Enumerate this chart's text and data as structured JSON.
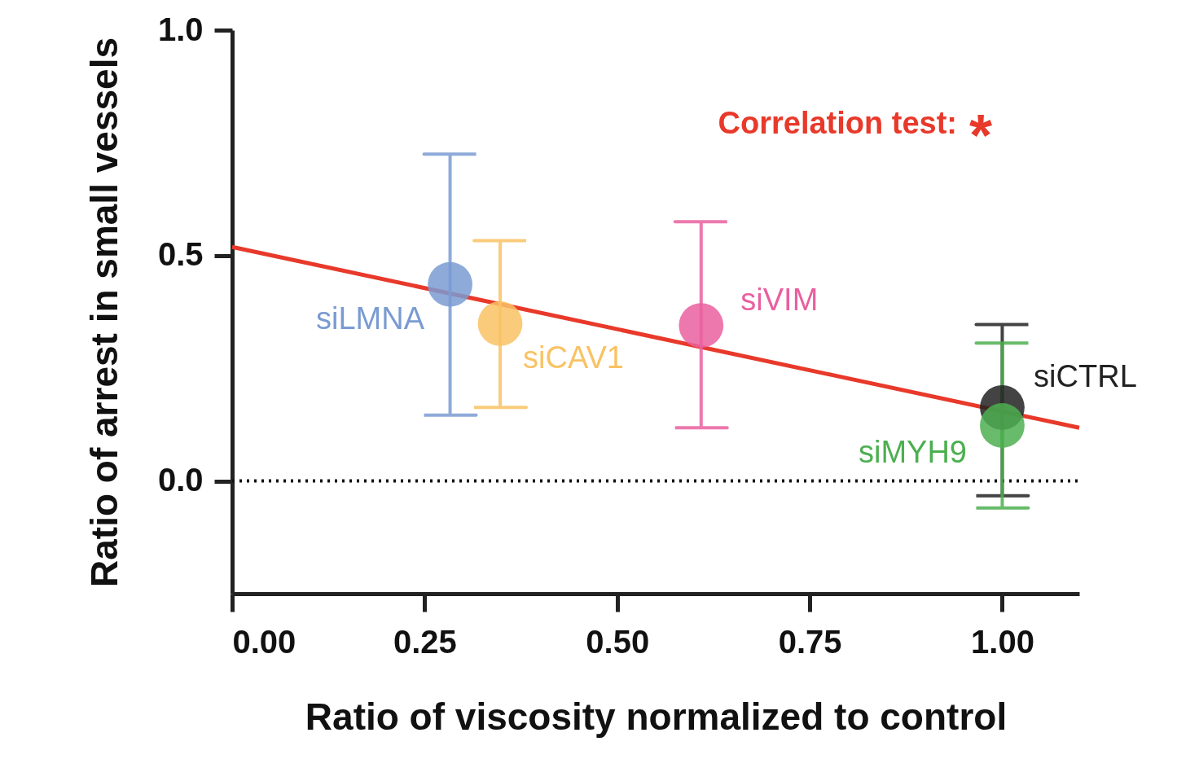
{
  "chart_data": {
    "type": "scatter",
    "xlabel": "Ratio of viscosity normalized to control",
    "ylabel": "Ratio of arrest in small vessels",
    "xlim": [
      0,
      1.1
    ],
    "ylim": [
      -0.25,
      1.0
    ],
    "xticks": [
      {
        "value": 0,
        "label": "0.00"
      },
      {
        "value": 0.25,
        "label": "0.25"
      },
      {
        "value": 0.5,
        "label": "0.50"
      },
      {
        "value": 0.75,
        "label": "0.75"
      },
      {
        "value": 1,
        "label": "1.00"
      }
    ],
    "yticks": [
      {
        "value": 0,
        "label": "0.0"
      },
      {
        "value": 0.5,
        "label": "0.5"
      },
      {
        "value": 1,
        "label": "1.0"
      }
    ],
    "marker": "circle",
    "series": [
      {
        "name": "siLMNA",
        "color": "#7a9bd2",
        "x": [
          0.283
        ],
        "values": [
          0.436
        ],
        "errors": [
          [
            0.146,
            0.725
          ]
        ]
      },
      {
        "name": "siCAV1",
        "color": "#f9c264",
        "x": [
          0.348
        ],
        "values": [
          0.349
        ],
        "errors": [
          [
            0.163,
            0.533
          ]
        ]
      },
      {
        "name": "siVIM",
        "color": "#e9609f",
        "x": [
          0.609
        ],
        "values": [
          0.345
        ],
        "errors": [
          [
            0.118,
            0.575
          ]
        ]
      },
      {
        "name": "siCTRL",
        "color": "#222222",
        "x": [
          1.0
        ],
        "values": [
          0.163
        ],
        "errors": [
          [
            -0.033,
            0.347
          ]
        ]
      },
      {
        "name": "siMYH9",
        "color": "#4caf50",
        "x": [
          1.0
        ],
        "values": [
          0.123
        ],
        "errors": [
          [
            -0.06,
            0.306
          ]
        ]
      },
      {
        "type": "line",
        "marker": "none",
        "color": "#e8392a",
        "x": [
          0,
          1.1
        ],
        "values": [
          0.519,
          0.118
        ]
      }
    ],
    "ref_lines": [
      {
        "axis": "y",
        "value": 0,
        "line_style": "dotted"
      }
    ],
    "annotations": [
      "Correlation test: *"
    ]
  }
}
